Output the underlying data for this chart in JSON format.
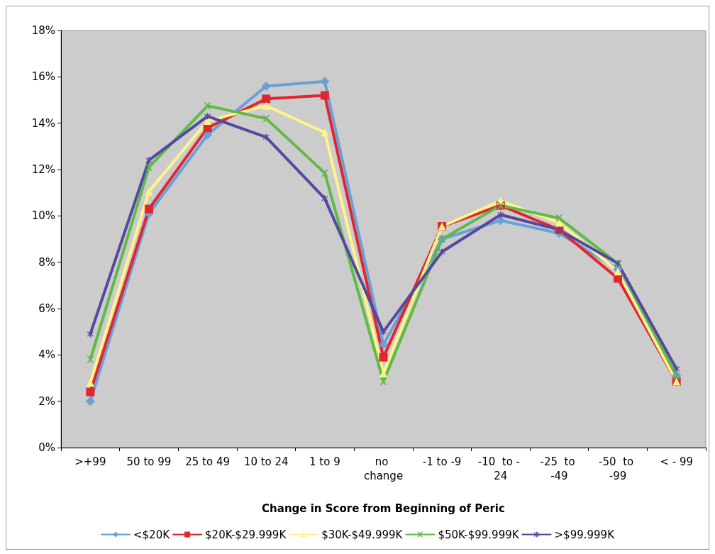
{
  "chart_data": {
    "type": "line",
    "xlabel": "Change in Score from Beginning of Peric",
    "categories": [
      ">+99",
      "50 to 99",
      "25 to 49",
      "10 to 24",
      "1 to 9",
      "no change",
      "-1 to -9",
      "-10  to - 24",
      "-25  to -49",
      "-50  to -99",
      "< - 99"
    ],
    "ylim": [
      0,
      18
    ],
    "yticks": [
      {
        "value": 0,
        "label": "0%"
      },
      {
        "value": 2,
        "label": "2%"
      },
      {
        "value": 4,
        "label": "4%"
      },
      {
        "value": 6,
        "label": "6%"
      },
      {
        "value": 8,
        "label": "8%"
      },
      {
        "value": 10,
        "label": "10%"
      },
      {
        "value": 12,
        "label": "12%"
      },
      {
        "value": 14,
        "label": "14%"
      },
      {
        "value": 16,
        "label": "16%"
      },
      {
        "value": 18,
        "label": "18%"
      }
    ],
    "grid": false,
    "legend": "bottom",
    "line_style": "solid",
    "series": [
      {
        "name": "<$20K",
        "color": "#6a9fd8",
        "marker": "diamond",
        "values": [
          2.0,
          10.1,
          13.5,
          15.6,
          15.8,
          4.45,
          9.0,
          9.8,
          9.25,
          7.7,
          3.1
        ]
      },
      {
        "name": "$20K-$29.999K",
        "color": "#e0262f",
        "marker": "square",
        "values": [
          2.4,
          10.3,
          13.8,
          15.05,
          15.2,
          3.9,
          9.55,
          10.45,
          9.4,
          7.3,
          2.85
        ]
      },
      {
        "name": "$30K-$49.999K",
        "color": "#fef48a",
        "marker": "triangle",
        "values": [
          2.8,
          11.05,
          14.1,
          14.75,
          13.6,
          3.2,
          9.55,
          10.65,
          9.7,
          7.6,
          2.85
        ]
      },
      {
        "name": "$50K-$99.999K",
        "color": "#5fba46",
        "marker": "cross",
        "values": [
          3.8,
          12.1,
          14.75,
          14.2,
          11.85,
          2.85,
          9.0,
          10.45,
          9.9,
          7.95,
          3.1
        ]
      },
      {
        "name": ">$99.999K",
        "color": "#5548a0",
        "marker": "star",
        "values": [
          4.9,
          12.4,
          14.3,
          13.4,
          10.75,
          5.0,
          8.45,
          10.05,
          9.4,
          7.95,
          3.4
        ]
      }
    ]
  }
}
